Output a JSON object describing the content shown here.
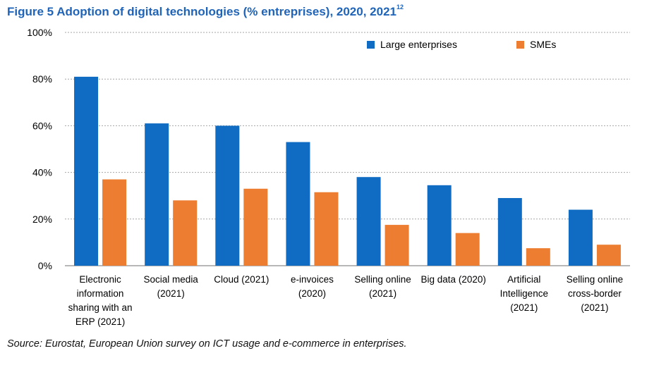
{
  "figure": {
    "title": "Figure 5 Adoption of digital technologies (% entreprises), 2020, 2021",
    "footnote_ref": "12",
    "source": "Source: Eurostat, European Union survey on ICT usage and e-commerce in enterprises."
  },
  "chart_data": {
    "type": "bar",
    "title": "Figure 5 Adoption of digital technologies (% entreprises), 2020, 2021",
    "xlabel": "",
    "ylabel": "",
    "ylim": [
      0,
      100
    ],
    "yticks": [
      0,
      20,
      40,
      60,
      80,
      100
    ],
    "ytick_labels": [
      "0%",
      "20%",
      "40%",
      "60%",
      "80%",
      "100%"
    ],
    "grid": true,
    "legend_position": "top-right",
    "categories": [
      [
        "Electronic",
        "information",
        "sharing with an",
        "ERP (2021)"
      ],
      [
        "Social media",
        "(2021)"
      ],
      [
        "Cloud (2021)"
      ],
      [
        "e-invoices",
        "(2020)"
      ],
      [
        "Selling online",
        "(2021)"
      ],
      [
        "Big data (2020)"
      ],
      [
        "Artificial",
        "Intelligence",
        "(2021)"
      ],
      [
        "Selling online",
        "cross-border",
        "(2021)"
      ]
    ],
    "series": [
      {
        "name": "Large enterprises",
        "color": "#0f6cc2",
        "values": [
          81,
          61,
          60,
          53,
          38,
          34.5,
          29,
          24
        ]
      },
      {
        "name": "SMEs",
        "color": "#ed7d31",
        "values": [
          37,
          28,
          33,
          31.5,
          17.5,
          14,
          7.5,
          9
        ]
      }
    ]
  }
}
